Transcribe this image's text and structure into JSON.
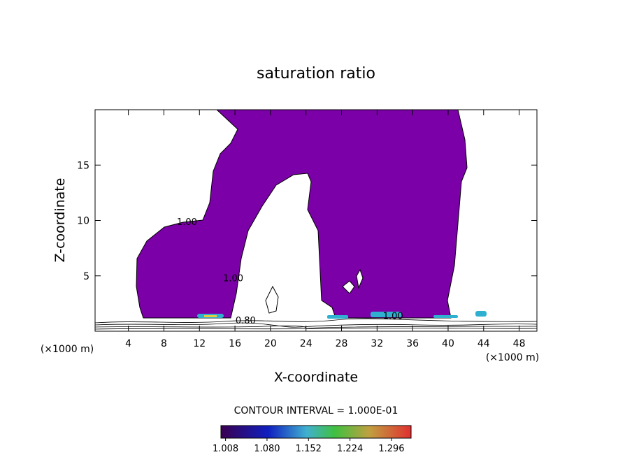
{
  "chart_data": {
    "type": "contour",
    "title": "saturation ratio",
    "xlabel": "X-coordinate",
    "ylabel": "Z-coordinate",
    "xunit_left": "(×1000 m)",
    "xunit_right": "(×1000 m)",
    "xlim": [
      0.25,
      50
    ],
    "xticks": [
      4,
      8,
      12,
      16,
      20,
      24,
      28,
      32,
      36,
      40,
      44,
      48
    ],
    "ylim": [
      0,
      20
    ],
    "yticks": [
      5,
      10,
      15
    ],
    "fill_color": "#7b00a8",
    "contour_labels": [
      {
        "text": "1.00",
        "x": 10.6,
        "y": 9.6
      },
      {
        "text": "1.00",
        "x": 15.8,
        "y": 4.5
      },
      {
        "text": "0.80",
        "x": 17.2,
        "y": 0.7
      },
      {
        "text": "1.00",
        "x": 33.8,
        "y": 1.1
      }
    ],
    "contour_interval": "CONTOUR INTERVAL = 1.000E-01",
    "colorbar": {
      "clim": [
        1.0,
        1.33
      ],
      "ticks": [
        1.008,
        1.08,
        1.152,
        1.224,
        1.296
      ],
      "tick_labels": [
        "1.008",
        "1.080",
        "1.152",
        "1.224",
        "1.296"
      ]
    }
  }
}
